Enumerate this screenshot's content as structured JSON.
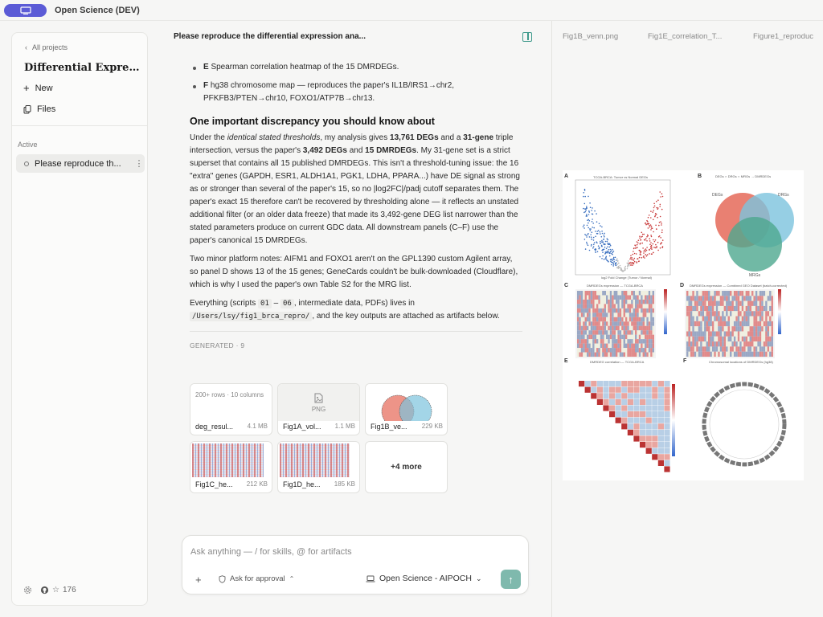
{
  "app": {
    "title": "Open Science (DEV)"
  },
  "sidebar": {
    "back_label": "All projects",
    "project_title": "Differential Express...",
    "new_label": "New",
    "files_label": "Files",
    "section_label": "Active",
    "active_chat": "Please reproduce th...",
    "github_stars": "176"
  },
  "main": {
    "header_title": "Please reproduce the differential expression ana...",
    "bullets": [
      {
        "letter": "E",
        "text": " Spearman correlation heatmap of the 15 DMRDEGs."
      },
      {
        "letter": "F",
        "text": " hg38 chromosome map — reproduces the paper's IL1B/IRS1→chr2, PFKFB3/PTEN→chr10, FOXO1/ATP7B→chr13."
      }
    ],
    "discrepancy_heading": "One important discrepancy you should know about",
    "p1": {
      "a": "Under the ",
      "b": "identical stated thresholds",
      "c": ", my analysis gives ",
      "d": "13,761 DEGs",
      "e": " and a ",
      "f": "31-gene",
      "g": " triple intersection, versus the paper's ",
      "h": "3,492 DEGs",
      "i": " and ",
      "j": "15 DMRDEGs",
      "k": ". My 31-gene set is a strict superset that contains all 15 published DMRDEGs. This isn't a threshold-tuning issue: the 16 \"extra\" genes (GAPDH, ESR1, ALDH1A1, PGK1, LDHA, PPARA...) have DE signal as strong as or stronger than several of the paper's 15, so no |log2FC|/padj cutoff separates them. The paper's exact 15 therefore can't be recovered by thresholding alone — it reflects an unstated additional filter (or an older data freeze) that made its 3,492-gene DEG list narrower than the stated parameters produce on current GDC data. All downstream panels (C–F) use the paper's canonical 15 DMRDEGs."
    },
    "p2": "Two minor platform notes: AIFM1 and FOXO1 aren't on the GPL1390 custom Agilent array, so panel D shows 13 of the 15 genes; GeneCards couldn't be bulk-downloaded (Cloudflare), which is why I used the paper's own Table S2 for the MRG list.",
    "p3": {
      "a": "Everything (scripts ",
      "code1": "01",
      "dash": " – ",
      "code2": "06",
      "b": ", intermediate data, PDFs) lives in ",
      "path": "/Users/lsy/fig1_brca_repro/",
      "c": ", and the key outputs are attached as artifacts below."
    },
    "generated_label": "GENERATED · 9",
    "artifacts": [
      {
        "name": "deg_resul...",
        "size": "4.1 MB",
        "preview": "200+ rows · 10 columns"
      },
      {
        "name": "Fig1A_vol...",
        "size": "1.1 MB",
        "preview": "PNG"
      },
      {
        "name": "Fig1B_ve...",
        "size": "229 KB"
      },
      {
        "name": "Fig1C_he...",
        "size": "212 KB"
      },
      {
        "name": "Fig1D_he...",
        "size": "185 KB"
      }
    ],
    "more_label": "+4 more"
  },
  "composer": {
    "placeholder": "Ask anything — / for skills, @ for artifacts",
    "approval_label": "Ask for approval",
    "model_label": "Open Science - AIPOCH"
  },
  "viewer": {
    "tabs": [
      "Fig1B_venn.png",
      "Fig1E_correlation_T...",
      "Figure1_reproduc"
    ],
    "figure": {
      "labels": [
        "A",
        "B",
        "C",
        "D",
        "E",
        "F"
      ],
      "titles": [
        "TCGA-BRCA: Tumor vs Normal DEGs",
        "DEGs ∩ DRGs ∩ MRGs → DMRDEGs",
        "DMRDEGs expression — TCGA-BRCA",
        "DMRDEGs expression — Combined GEO Dataset (batch-corrected)",
        "DMRDEG correlation — TCGA-BRCA",
        "Chromosomal locations of DMRDEGs (hg38)"
      ],
      "venn": [
        "DEGs",
        "DRGs",
        "MRGs"
      ],
      "volcano_xlabel": "log2 Fold Change (Tumor / Normal)"
    }
  },
  "colors": {
    "accent": "#5b5bd6",
    "send": "#7fb9ad",
    "up": "#c83a3a",
    "down": "#3a6fbf"
  }
}
